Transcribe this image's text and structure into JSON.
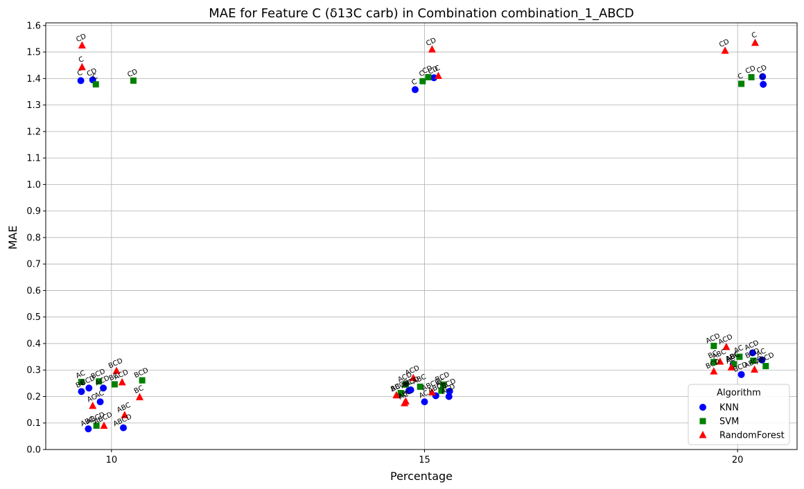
{
  "chart_data": {
    "type": "scatter",
    "title": "MAE for Feature C (δ13C carb) in Combination combination_1_ABCD",
    "xlabel": "Percentage",
    "ylabel": "MAE",
    "x_ticks": [
      10,
      15,
      20
    ],
    "xlim": [
      8.95,
      20.95
    ],
    "ylim": [
      0.0,
      1.61
    ],
    "y_ticks": [
      "0.0",
      "0.1",
      "0.2",
      "0.3",
      "0.4",
      "0.5",
      "0.6",
      "0.7",
      "0.8",
      "0.9",
      "1.0",
      "1.1",
      "1.2",
      "1.3",
      "1.4",
      "1.5",
      "1.6"
    ],
    "grid": true,
    "legend": {
      "title": "Algorithm",
      "placement": "lower-right"
    },
    "series": [
      {
        "name": "KNN",
        "marker": "circle",
        "color": "#0000ff",
        "points": [
          {
            "x": 9.63,
            "y": 0.078,
            "label": "ABC"
          },
          {
            "x": 10.19,
            "y": 0.082,
            "label": "ABCD"
          },
          {
            "x": 9.82,
            "y": 0.18,
            "label": "AC"
          },
          {
            "x": 9.52,
            "y": 0.219,
            "label": "BC"
          },
          {
            "x": 9.64,
            "y": 0.232,
            "label": "BCD"
          },
          {
            "x": 9.87,
            "y": 0.232,
            "label": "ACD"
          },
          {
            "x": 9.51,
            "y": 1.392,
            "label": "C"
          },
          {
            "x": 9.7,
            "y": 1.395,
            "label": "CD"
          },
          {
            "x": 14.78,
            "y": 0.225,
            "label": "ABCD"
          },
          {
            "x": 14.75,
            "y": 0.222,
            "label": "BC"
          },
          {
            "x": 15.0,
            "y": 0.18,
            "label": "AC"
          },
          {
            "x": 15.18,
            "y": 0.203,
            "label": "ABC"
          },
          {
            "x": 15.39,
            "y": 0.2,
            "label": "ACD"
          },
          {
            "x": 15.4,
            "y": 0.22,
            "label": "BCD"
          },
          {
            "x": 14.85,
            "y": 1.358,
            "label": "C"
          },
          {
            "x": 15.15,
            "y": 1.403,
            "label": "CD"
          },
          {
            "x": 20.06,
            "y": 0.283,
            "label": "BCD"
          },
          {
            "x": 19.93,
            "y": 0.322,
            "label": "ABC"
          },
          {
            "x": 20.24,
            "y": 0.365,
            "label": "ACD"
          },
          {
            "x": 20.39,
            "y": 0.338,
            "label": "AC"
          },
          {
            "x": 20.41,
            "y": 1.378,
            "label": "C"
          },
          {
            "x": 20.4,
            "y": 1.407,
            "label": "CD"
          }
        ]
      },
      {
        "name": "SVM",
        "marker": "square",
        "color": "#008000",
        "points": [
          {
            "x": 9.76,
            "y": 0.09,
            "label": "ABCD"
          },
          {
            "x": 9.52,
            "y": 0.255,
            "label": "AC"
          },
          {
            "x": 9.8,
            "y": 0.257,
            "label": "BCD"
          },
          {
            "x": 10.05,
            "y": 0.246,
            "label": "BC"
          },
          {
            "x": 10.49,
            "y": 0.261,
            "label": "BCD"
          },
          {
            "x": 9.75,
            "y": 1.378,
            "label": "C"
          },
          {
            "x": 10.35,
            "y": 1.392,
            "label": "CD"
          },
          {
            "x": 14.62,
            "y": 0.213,
            "label": "ABCD"
          },
          {
            "x": 14.7,
            "y": 0.245,
            "label": "ACD"
          },
          {
            "x": 14.93,
            "y": 0.237,
            "label": "ABC"
          },
          {
            "x": 15.27,
            "y": 0.222,
            "label": "AC"
          },
          {
            "x": 15.3,
            "y": 0.245,
            "label": "BCD"
          },
          {
            "x": 14.97,
            "y": 1.39,
            "label": "C"
          },
          {
            "x": 15.06,
            "y": 1.405,
            "label": "CD"
          },
          {
            "x": 19.62,
            "y": 0.33,
            "label": "BC"
          },
          {
            "x": 19.62,
            "y": 0.391,
            "label": "ACD"
          },
          {
            "x": 19.94,
            "y": 0.322,
            "label": "ABC"
          },
          {
            "x": 20.03,
            "y": 0.35,
            "label": "AC"
          },
          {
            "x": 20.25,
            "y": 0.335,
            "label": "BCD"
          },
          {
            "x": 20.45,
            "y": 0.315,
            "label": "ABCD"
          },
          {
            "x": 20.06,
            "y": 1.38,
            "label": "C"
          },
          {
            "x": 20.22,
            "y": 1.405,
            "label": "CD"
          }
        ]
      },
      {
        "name": "RandomForest",
        "marker": "triangle",
        "color": "#ff0000",
        "points": [
          {
            "x": 9.88,
            "y": 0.09,
            "label": "ABCD"
          },
          {
            "x": 10.21,
            "y": 0.13,
            "label": "ABC"
          },
          {
            "x": 9.7,
            "y": 0.165,
            "label": "AC"
          },
          {
            "x": 10.45,
            "y": 0.198,
            "label": "BC"
          },
          {
            "x": 10.08,
            "y": 0.297,
            "label": "BCD"
          },
          {
            "x": 10.17,
            "y": 0.254,
            "label": "ACD"
          },
          {
            "x": 9.53,
            "y": 1.443,
            "label": "C"
          },
          {
            "x": 9.53,
            "y": 1.525,
            "label": "CD"
          },
          {
            "x": 14.55,
            "y": 0.205,
            "label": "BC"
          },
          {
            "x": 14.68,
            "y": 0.175,
            "label": "AC"
          },
          {
            "x": 14.7,
            "y": 0.182,
            "label": "ABC"
          },
          {
            "x": 14.82,
            "y": 0.27,
            "label": "ACD"
          },
          {
            "x": 15.12,
            "y": 0.216,
            "label": "ABCD"
          },
          {
            "x": 15.22,
            "y": 1.41,
            "label": "C"
          },
          {
            "x": 15.12,
            "y": 1.51,
            "label": "CD"
          },
          {
            "x": 19.62,
            "y": 0.295,
            "label": "BCD"
          },
          {
            "x": 19.72,
            "y": 0.332,
            "label": "ABC"
          },
          {
            "x": 19.82,
            "y": 0.387,
            "label": "ACD"
          },
          {
            "x": 19.9,
            "y": 0.31,
            "label": "AC"
          },
          {
            "x": 20.27,
            "y": 0.302,
            "label": "ABCD"
          },
          {
            "x": 19.8,
            "y": 1.505,
            "label": "CD"
          },
          {
            "x": 20.28,
            "y": 1.535,
            "label": "C"
          }
        ]
      }
    ]
  }
}
